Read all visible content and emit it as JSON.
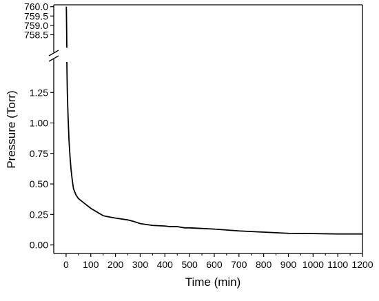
{
  "chart_data": {
    "type": "line",
    "title": "",
    "xlabel": "Time (min)",
    "ylabel": "Pressure (Torr)",
    "xlim": [
      -50,
      1200
    ],
    "x_ticks": [
      0,
      100,
      200,
      300,
      400,
      500,
      600,
      700,
      800,
      900,
      1000,
      1100,
      1200
    ],
    "x_tick_labels": [
      "0",
      "100",
      "200",
      "300",
      "400",
      "500",
      "600",
      "700",
      "800",
      "900",
      "1000",
      "1100",
      "1200"
    ],
    "y_axis_break": true,
    "y_lower": {
      "ylim": [
        -0.07,
        1.5
      ],
      "ticks": [
        0.0,
        0.25,
        0.5,
        0.75,
        1.0,
        1.25
      ],
      "tick_labels": [
        "0.00",
        "0.25",
        "0.50",
        "0.75",
        "1.00",
        "1.25"
      ]
    },
    "y_upper": {
      "ylim": [
        757.7,
        760.1
      ],
      "ticks": [
        758.5,
        759.0,
        759.5,
        760.0
      ],
      "tick_labels": [
        "758.5",
        "759.0",
        "759.5",
        "760.0"
      ]
    },
    "grid": false,
    "legend": "none",
    "series": [
      {
        "color": "#000000",
        "upper_segment": {
          "x": [
            1,
            2,
            3
          ],
          "y": [
            760.0,
            759.0,
            757.8
          ]
        },
        "lower_segment": {
          "x": [
            3,
            5,
            8,
            12,
            16,
            20,
            25,
            30,
            40,
            50,
            75,
            100,
            125,
            150,
            160,
            200,
            250,
            270,
            300,
            350,
            400,
            420,
            450,
            480,
            500,
            550,
            600,
            700,
            800,
            900,
            1000,
            1100,
            1200
          ],
          "y": [
            1.5,
            1.25,
            1.05,
            0.85,
            0.72,
            0.62,
            0.53,
            0.46,
            0.41,
            0.38,
            0.34,
            0.3,
            0.27,
            0.24,
            0.235,
            0.22,
            0.205,
            0.195,
            0.175,
            0.16,
            0.155,
            0.15,
            0.15,
            0.14,
            0.14,
            0.135,
            0.13,
            0.115,
            0.105,
            0.095,
            0.093,
            0.09,
            0.09
          ]
        }
      }
    ]
  }
}
